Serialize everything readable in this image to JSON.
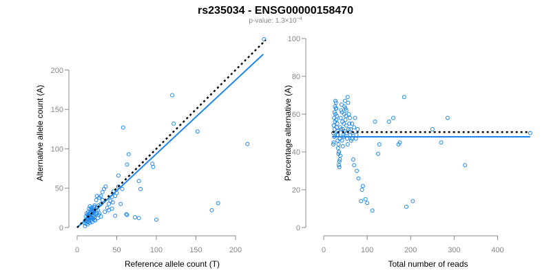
{
  "figure": {
    "title": "rs235034 - ENSG00000158470",
    "subtitle_prefix": "p-value: 1.3×10",
    "subtitle_exp": "−4"
  },
  "colors": {
    "point": "#1c86ee",
    "fit_line": "#1c86ee",
    "reference_line": "#000000",
    "axis": "#888888"
  },
  "chart_data": [
    {
      "type": "scatter",
      "title": "",
      "xlabel": "Reference allele count (T)",
      "ylabel": "Alternative allele count (A)",
      "xlim": [
        0,
        240
      ],
      "ylim": [
        0,
        240
      ],
      "x_ticks": [
        0,
        50,
        100,
        150,
        200
      ],
      "y_ticks": [
        0,
        50,
        100,
        150,
        200
      ],
      "grid": false,
      "fit_line": {
        "x": [
          0,
          235
        ],
        "y": [
          0,
          220
        ],
        "style": "solid"
      },
      "reference_line": {
        "x": [
          0,
          238
        ],
        "y": [
          0,
          238
        ],
        "style": "dotted"
      },
      "points": [
        [
          236,
          239
        ],
        [
          120,
          168
        ],
        [
          58,
          127
        ],
        [
          215,
          106
        ],
        [
          152,
          122
        ],
        [
          122,
          132
        ],
        [
          65,
          93
        ],
        [
          63,
          80
        ],
        [
          95,
          81
        ],
        [
          96,
          77
        ],
        [
          78,
          59
        ],
        [
          80,
          49
        ],
        [
          52,
          66
        ],
        [
          178,
          31
        ],
        [
          170,
          22
        ],
        [
          100,
          10
        ],
        [
          78,
          12
        ],
        [
          73,
          13
        ],
        [
          62,
          17
        ],
        [
          63,
          16
        ],
        [
          57,
          49
        ],
        [
          52,
          52
        ],
        [
          50,
          44
        ],
        [
          48,
          40
        ],
        [
          46,
          46
        ],
        [
          44,
          39
        ],
        [
          45,
          32
        ],
        [
          42,
          34
        ],
        [
          40,
          30
        ],
        [
          38,
          25
        ],
        [
          36,
          52
        ],
        [
          34,
          49
        ],
        [
          32,
          45
        ],
        [
          30,
          40
        ],
        [
          32,
          35
        ],
        [
          28,
          38
        ],
        [
          30,
          30
        ],
        [
          27,
          28
        ],
        [
          26,
          22
        ],
        [
          28,
          18
        ],
        [
          25,
          40
        ],
        [
          22,
          26
        ],
        [
          24,
          35
        ],
        [
          35,
          20
        ],
        [
          40,
          22
        ],
        [
          44,
          24
        ],
        [
          55,
          30
        ],
        [
          48,
          15
        ],
        [
          26,
          12
        ],
        [
          30,
          14
        ],
        [
          10,
          2
        ],
        [
          11,
          5
        ],
        [
          12,
          8
        ],
        [
          13,
          10
        ],
        [
          14,
          12
        ],
        [
          15,
          14
        ],
        [
          16,
          16
        ],
        [
          17,
          18
        ],
        [
          18,
          20
        ],
        [
          19,
          22
        ],
        [
          20,
          24
        ],
        [
          21,
          26
        ],
        [
          22,
          28
        ],
        [
          14,
          20
        ],
        [
          15,
          24
        ],
        [
          16,
          27
        ],
        [
          12,
          18
        ],
        [
          11,
          14
        ],
        [
          13,
          16
        ],
        [
          17,
          12
        ],
        [
          18,
          9
        ],
        [
          19,
          7
        ],
        [
          20,
          11
        ],
        [
          21,
          15
        ],
        [
          22,
          13
        ],
        [
          23,
          17
        ],
        [
          16,
          6
        ],
        [
          15,
          9
        ],
        [
          14,
          7
        ],
        [
          12,
          11
        ],
        [
          10,
          9
        ],
        [
          9,
          6
        ],
        [
          13,
          4
        ],
        [
          17,
          14
        ],
        [
          19,
          16
        ],
        [
          20,
          19
        ],
        [
          21,
          21
        ],
        [
          15,
          17
        ],
        [
          16,
          19
        ],
        [
          18,
          13
        ],
        [
          24,
          22
        ],
        [
          25,
          18
        ],
        [
          27,
          16
        ],
        [
          20,
          14
        ],
        [
          19,
          12
        ],
        [
          22,
          10
        ],
        [
          23,
          9
        ],
        [
          17,
          23
        ],
        [
          18,
          25
        ],
        [
          14,
          15
        ]
      ]
    },
    {
      "type": "scatter",
      "title": "",
      "xlabel": "Total number of reads",
      "ylabel": "Percentage alternative (A)",
      "xlim": [
        0,
        480
      ],
      "ylim": [
        0,
        100
      ],
      "x_ticks": [
        0,
        100,
        200,
        300,
        400
      ],
      "y_ticks": [
        0,
        20,
        40,
        60,
        80,
        100
      ],
      "grid": false,
      "fit_line": {
        "x": [
          20,
          475
        ],
        "y": [
          48,
          48
        ],
        "style": "solid"
      },
      "reference_line": {
        "x": [
          20,
          475
        ],
        "y": [
          50.5,
          50.5
        ],
        "style": "dotted"
      },
      "points": [
        [
          475,
          50
        ],
        [
          185,
          69
        ],
        [
          285,
          58
        ],
        [
          325,
          33
        ],
        [
          270,
          45
        ],
        [
          250,
          52
        ],
        [
          205,
          14
        ],
        [
          190,
          11
        ],
        [
          175,
          45
        ],
        [
          172,
          44
        ],
        [
          160,
          58
        ],
        [
          150,
          56
        ],
        [
          128,
          44
        ],
        [
          125,
          39
        ],
        [
          118,
          56
        ],
        [
          112,
          9
        ],
        [
          100,
          13
        ],
        [
          96,
          15
        ],
        [
          88,
          20
        ],
        [
          90,
          22
        ],
        [
          86,
          14
        ],
        [
          80,
          26
        ],
        [
          76,
          30
        ],
        [
          75,
          49
        ],
        [
          70,
          33
        ],
        [
          68,
          36
        ],
        [
          65,
          47
        ],
        [
          65,
          55
        ],
        [
          62,
          52
        ],
        [
          60,
          58
        ],
        [
          58,
          60
        ],
        [
          56,
          66
        ],
        [
          55,
          69
        ],
        [
          52,
          62
        ],
        [
          50,
          57
        ],
        [
          48,
          51
        ],
        [
          46,
          48
        ],
        [
          44,
          43
        ],
        [
          42,
          46
        ],
        [
          40,
          52
        ],
        [
          38,
          38
        ],
        [
          37,
          36
        ],
        [
          36,
          35
        ],
        [
          35,
          40
        ],
        [
          34,
          44
        ],
        [
          33,
          49
        ],
        [
          32,
          51
        ],
        [
          31,
          55
        ],
        [
          30,
          59
        ],
        [
          29,
          63
        ],
        [
          28,
          66
        ],
        [
          27,
          60
        ],
        [
          26,
          56
        ],
        [
          25,
          52
        ],
        [
          24,
          48
        ],
        [
          23,
          45
        ],
        [
          22,
          44
        ],
        [
          22,
          50
        ],
        [
          23,
          54
        ],
        [
          24,
          58
        ],
        [
          25,
          61
        ],
        [
          26,
          64
        ],
        [
          27,
          67
        ],
        [
          28,
          63
        ],
        [
          29,
          57
        ],
        [
          30,
          53
        ],
        [
          31,
          49
        ],
        [
          32,
          46
        ],
        [
          33,
          42
        ],
        [
          34,
          39
        ],
        [
          35,
          33
        ],
        [
          36,
          32
        ],
        [
          37,
          47
        ],
        [
          38,
          53
        ],
        [
          39,
          58
        ],
        [
          40,
          62
        ],
        [
          41,
          65
        ],
        [
          42,
          61
        ],
        [
          43,
          56
        ],
        [
          44,
          52
        ],
        [
          45,
          49
        ],
        [
          46,
          55
        ],
        [
          47,
          60
        ],
        [
          48,
          64
        ],
        [
          49,
          67
        ],
        [
          50,
          63
        ],
        [
          51,
          59
        ],
        [
          52,
          54
        ],
        [
          53,
          50
        ],
        [
          54,
          47
        ],
        [
          55,
          44
        ],
        [
          57,
          52
        ],
        [
          59,
          55
        ],
        [
          61,
          49
        ],
        [
          63,
          46
        ],
        [
          66,
          50
        ],
        [
          70,
          53
        ],
        [
          72,
          58
        ],
        [
          74,
          47
        ],
        [
          78,
          52
        ]
      ]
    }
  ]
}
